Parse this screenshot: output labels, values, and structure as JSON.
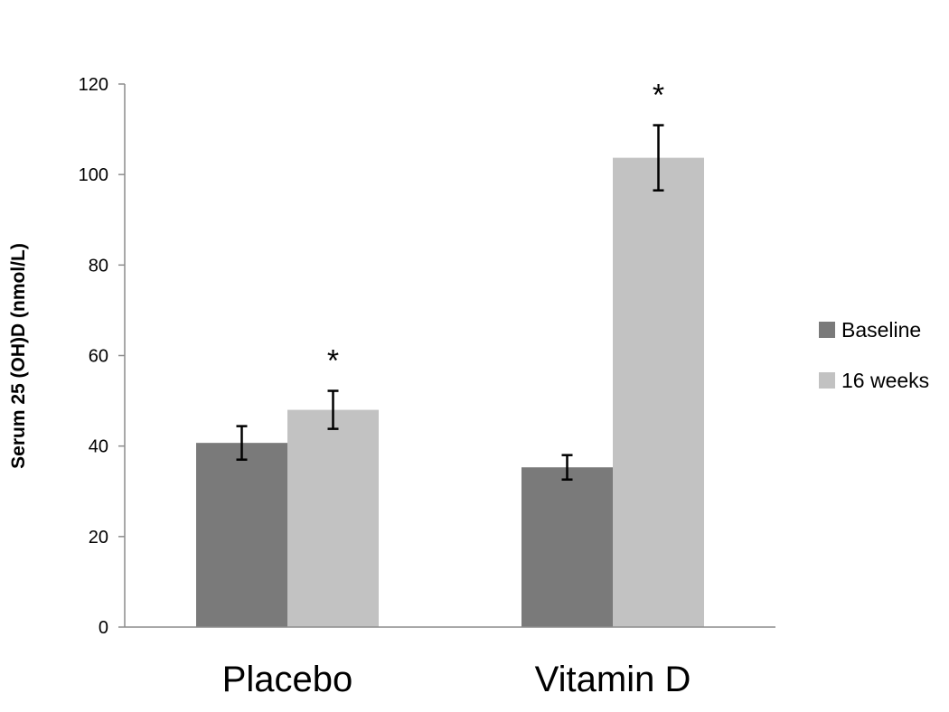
{
  "chart_data": {
    "type": "bar",
    "title": "",
    "xlabel": "",
    "ylabel": "Serum 25 (OH)D (nmol/L)",
    "ylim": [
      0,
      120
    ],
    "yticks": [
      0,
      20,
      40,
      60,
      80,
      100,
      120
    ],
    "ytick_labels": [
      "0",
      "20",
      "40",
      "60",
      "80",
      "100",
      "120"
    ],
    "grid": false,
    "legend_position": "right",
    "categories": [
      "Placebo",
      "Vitamin D"
    ],
    "series": [
      {
        "name": "Baseline",
        "color": "#7a7a7a",
        "values": [
          40.7,
          35.3
        ],
        "errors": [
          3.7,
          2.7
        ],
        "annotations": [
          "",
          ""
        ]
      },
      {
        "name": "16 weeks",
        "color": "#c2c2c2",
        "values": [
          48.0,
          103.7
        ],
        "errors": [
          4.2,
          7.2
        ],
        "annotations": [
          "*",
          "*"
        ]
      }
    ]
  }
}
